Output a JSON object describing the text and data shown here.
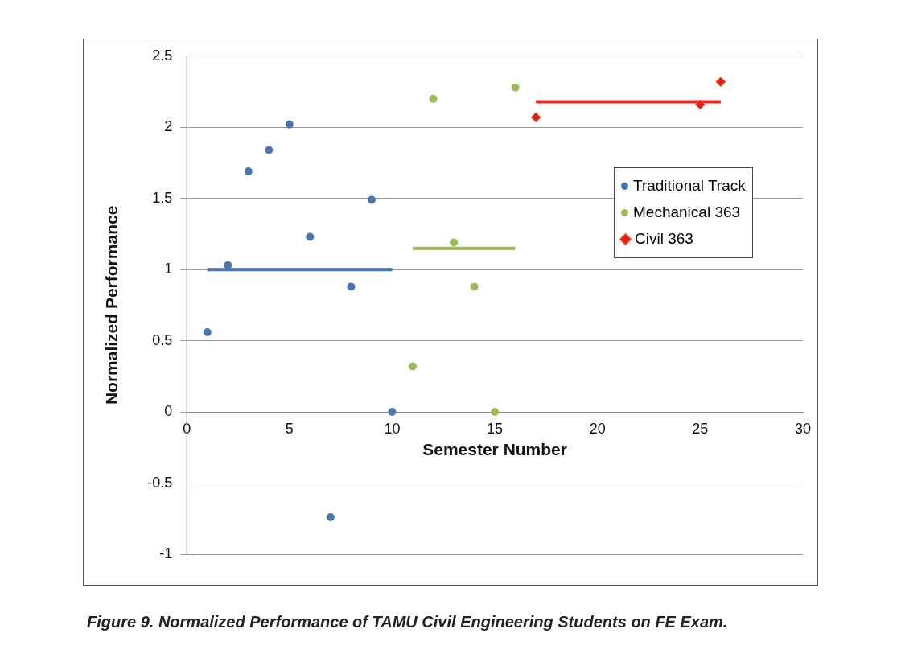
{
  "chart_data": {
    "type": "scatter",
    "xlabel": "Semester Number",
    "ylabel": "Normalized Performance",
    "xlim": [
      0,
      30
    ],
    "xticks": [
      0,
      5,
      10,
      15,
      20,
      25,
      30
    ],
    "ylim": [
      -1,
      2.5
    ],
    "yticks": [
      -1,
      -0.5,
      0,
      0.5,
      1,
      1.5,
      2,
      2.5
    ],
    "grid": "y",
    "legend": "right",
    "series": [
      {
        "name": "Traditional Track",
        "color": "#4a76b0",
        "marker": "circle",
        "x": [
          1,
          2,
          3,
          4,
          5,
          6,
          7,
          8,
          9,
          10
        ],
        "values": [
          0.56,
          1.03,
          1.69,
          1.84,
          2.02,
          1.23,
          -0.74,
          0.88,
          1.49,
          0
        ]
      },
      {
        "name": "Mechanical 363",
        "color": "#9bbb59",
        "marker": "circle",
        "x": [
          11,
          12,
          13,
          14,
          15,
          16
        ],
        "values": [
          0.32,
          2.2,
          1.19,
          0.88,
          0,
          2.28
        ]
      },
      {
        "name": "Civil 363",
        "color": "#e0201c",
        "marker": "diamond",
        "x": [
          17,
          25,
          26
        ],
        "values": [
          2.07,
          2.16,
          2.32
        ]
      },
      {
        "type": "line",
        "color": "#4a76b0",
        "marker": "none",
        "x": [
          1,
          10
        ],
        "values": [
          1,
          1
        ]
      },
      {
        "type": "line",
        "color": "#9bbb59",
        "marker": "none",
        "x": [
          11,
          16
        ],
        "values": [
          1.15,
          1.15
        ]
      },
      {
        "type": "line",
        "color": "#ee2222",
        "marker": "none",
        "x": [
          17,
          26
        ],
        "values": [
          2.18,
          2.18
        ]
      }
    ],
    "annotations": [
      "Figure 9. Normalized Performance of TAMU Civil Engineering Students on FE Exam."
    ]
  }
}
